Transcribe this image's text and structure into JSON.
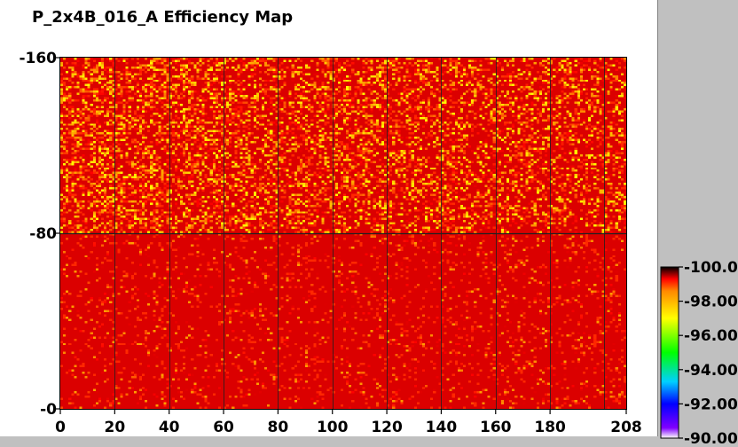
{
  "chart_data": {
    "type": "heatmap",
    "title": "P_2x4B_016_A Efficiency Map",
    "x_range": [
      0,
      208
    ],
    "y_range": [
      0,
      160
    ],
    "grid_columns": 208,
    "grid_rows": 160,
    "x_ticks": [
      0,
      20,
      40,
      60,
      80,
      100,
      120,
      140,
      160,
      180,
      208
    ],
    "x_tick_labels": [
      "0",
      "20",
      "40",
      "60",
      "80",
      "100",
      "120",
      "140",
      "160",
      "180",
      "208"
    ],
    "y_ticks": [
      0,
      80,
      160
    ],
    "y_tick_labels": [
      "0",
      "80",
      "160"
    ],
    "x_boundaries": [
      20,
      40,
      60,
      80,
      100,
      120,
      140,
      160,
      180,
      200
    ],
    "y_boundaries": [
      80
    ],
    "color_scale": {
      "min": 90,
      "max": 100,
      "ticks": [
        100,
        98,
        96,
        94,
        92,
        90
      ],
      "tick_labels": [
        "100.00",
        "98.00",
        "96.00",
        "94.00",
        "92.00",
        "90.00"
      ],
      "stops": [
        {
          "value": 90,
          "color": "#ffffff"
        },
        {
          "value": 90.6,
          "color": "#8000ff"
        },
        {
          "value": 92,
          "color": "#0000ff"
        },
        {
          "value": 93.3,
          "color": "#00d0ff"
        },
        {
          "value": 95,
          "color": "#00ff00"
        },
        {
          "value": 97,
          "color": "#ffff00"
        },
        {
          "value": 98.6,
          "color": "#ff8800"
        },
        {
          "value": 99.3,
          "color": "#ff0000"
        },
        {
          "value": 100,
          "color": "#000000"
        }
      ]
    },
    "dominant_value": 99.4,
    "region_summary": [
      {
        "y_from": 80,
        "y_to": 160,
        "typical_min": 97.0,
        "typical_max": 99.4,
        "note": "upper half shows more yellow/orange pixels"
      },
      {
        "y_from": 0,
        "y_to": 80,
        "typical_min": 98.2,
        "typical_max": 99.4,
        "note": "lower half mostly red with sparse orange pixels"
      }
    ]
  },
  "colors": {
    "background": "#ffffff",
    "right_panel": "#c0c0c0",
    "bottom_panel": "#c0c0c0",
    "grid_line": "#202020"
  }
}
